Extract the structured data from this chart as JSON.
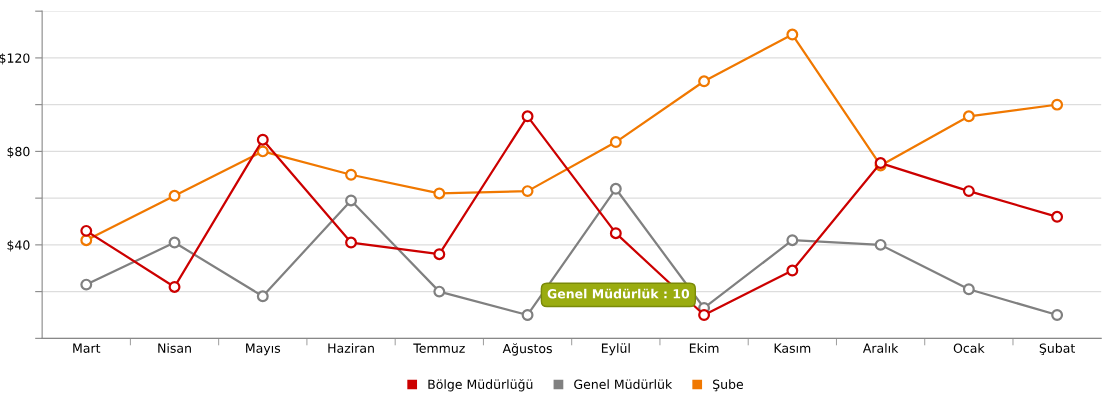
{
  "chart_data": {
    "type": "line",
    "categories": [
      "Mart",
      "Nisan",
      "Mayıs",
      "Haziran",
      "Temmuz",
      "Ağustos",
      "Eylül",
      "Ekim",
      "Kasım",
      "Aralık",
      "Ocak",
      "Şubat"
    ],
    "series": [
      {
        "name": "Bölge Müdürlüğü",
        "color": "#cc0000",
        "values": [
          46,
          22,
          85,
          41,
          36,
          95,
          45,
          10,
          29,
          75,
          63,
          52
        ]
      },
      {
        "name": "Genel Müdürlük",
        "color": "#808080",
        "values": [
          23,
          41,
          18,
          59,
          20,
          10,
          64,
          13,
          42,
          40,
          21,
          10
        ]
      },
      {
        "name": "Şube",
        "color": "#f07800",
        "values": [
          42,
          61,
          80,
          70,
          62,
          63,
          84,
          110,
          130,
          74,
          95,
          100
        ]
      }
    ],
    "ylim": [
      0,
      140
    ],
    "yticks": [
      {
        "value": 0,
        "label": null
      },
      {
        "value": 20,
        "label": null
      },
      {
        "value": 40,
        "label": "$40"
      },
      {
        "value": 60,
        "label": null
      },
      {
        "value": 80,
        "label": "$80"
      },
      {
        "value": 100,
        "label": null
      },
      {
        "value": 120,
        "label": "$120"
      },
      {
        "value": 140,
        "label": null
      }
    ],
    "grid": "y",
    "legend": "bottom",
    "marker": "circle",
    "line_style": "solid",
    "annotations": [
      {
        "text": "Genel Müdürlük : 10",
        "x": "Ağustos",
        "y": 10
      }
    ]
  }
}
